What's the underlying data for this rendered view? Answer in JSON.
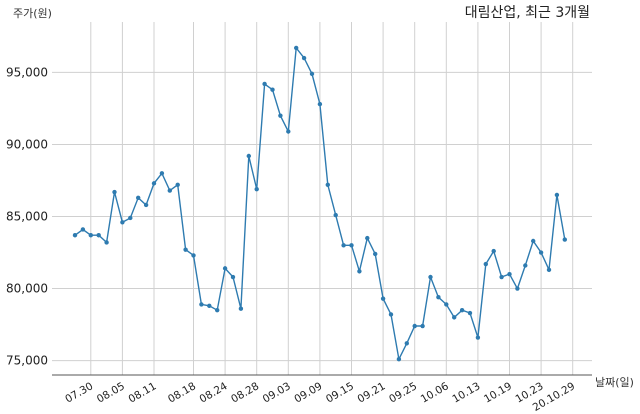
{
  "chart_data": {
    "type": "line",
    "title": "대림산업, 최근 3개월",
    "ylabel": "주가(원)",
    "xlabel": "날짜(일)",
    "ylim": [
      74000,
      98500
    ],
    "y_ticks": [
      75000,
      80000,
      85000,
      90000,
      95000
    ],
    "y_tick_labels": [
      "75,000",
      "80,000",
      "85,000",
      "90,000",
      "95,000"
    ],
    "x_tick_labels": [
      "07.30",
      "08.05",
      "08.11",
      "08.18",
      "08.24",
      "08.28",
      "09.03",
      "09.09",
      "09.15",
      "09.21",
      "09.25",
      "10.06",
      "10.13",
      "10.19",
      "10.23",
      "20.10.29"
    ],
    "x_tick_index": [
      2,
      6,
      10,
      15,
      19,
      23,
      27,
      31,
      35,
      39,
      43,
      47,
      51,
      55,
      59,
      63
    ],
    "grid": true,
    "series": [
      {
        "values": [
          83700,
          84100,
          83700,
          83700,
          83200,
          86700,
          84600,
          84900,
          86300,
          85800,
          87300,
          88000,
          86800,
          87200,
          82700,
          82300,
          78900,
          78800,
          78500,
          81400,
          80800,
          78600,
          89200,
          86900,
          94200,
          93800,
          92000,
          90900,
          96700,
          96000,
          94900,
          92800,
          87200,
          85100,
          83000,
          83000,
          81200,
          83500,
          82400,
          79300,
          78200,
          75100,
          76200,
          77400,
          77400,
          80800,
          79400,
          78900,
          78000,
          78500,
          78300,
          76600,
          81700,
          82600,
          80800,
          81000,
          80000,
          81600,
          83300,
          82500,
          81300,
          86500,
          83400
        ]
      }
    ]
  }
}
